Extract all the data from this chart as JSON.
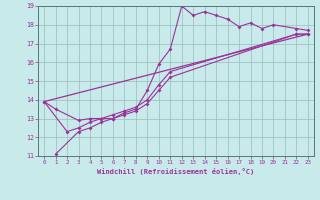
{
  "xlabel": "Windchill (Refroidissement éolien,°C)",
  "xlim": [
    -0.5,
    23.5
  ],
  "ylim": [
    11,
    19
  ],
  "yticks": [
    11,
    12,
    13,
    14,
    15,
    16,
    17,
    18,
    19
  ],
  "xticks": [
    0,
    1,
    2,
    3,
    4,
    5,
    6,
    7,
    8,
    9,
    10,
    11,
    12,
    13,
    14,
    15,
    16,
    17,
    18,
    19,
    20,
    21,
    22,
    23
  ],
  "line_color": "#993399",
  "bg_color": "#c8eaea",
  "grid_color": "#99bbbb",
  "curve1_x": [
    0,
    1,
    3,
    4,
    5,
    6,
    7,
    8,
    9,
    10,
    11,
    12,
    13,
    14,
    15,
    16,
    17,
    18,
    19,
    20,
    22,
    23
  ],
  "curve1_y": [
    13.9,
    13.5,
    12.9,
    13.0,
    13.0,
    13.0,
    13.3,
    13.5,
    14.5,
    15.9,
    16.7,
    19.0,
    18.5,
    18.7,
    18.5,
    18.3,
    17.9,
    18.1,
    17.8,
    18.0,
    17.8,
    17.7
  ],
  "curve2_x": [
    0,
    2,
    3,
    4,
    5,
    6,
    7,
    8,
    9,
    10,
    11,
    22,
    23
  ],
  "curve2_y": [
    13.9,
    12.3,
    12.5,
    12.8,
    13.0,
    13.2,
    13.4,
    13.6,
    14.0,
    14.8,
    15.5,
    17.5,
    17.5
  ],
  "curve3_x": [
    1,
    3,
    4,
    5,
    6,
    7,
    8,
    9,
    10,
    11,
    22,
    23
  ],
  "curve3_y": [
    11.1,
    12.3,
    12.5,
    12.8,
    13.0,
    13.2,
    13.4,
    13.8,
    14.5,
    15.2,
    17.5,
    17.5
  ],
  "regline_x": [
    0,
    23
  ],
  "regline_y": [
    13.9,
    17.5
  ]
}
